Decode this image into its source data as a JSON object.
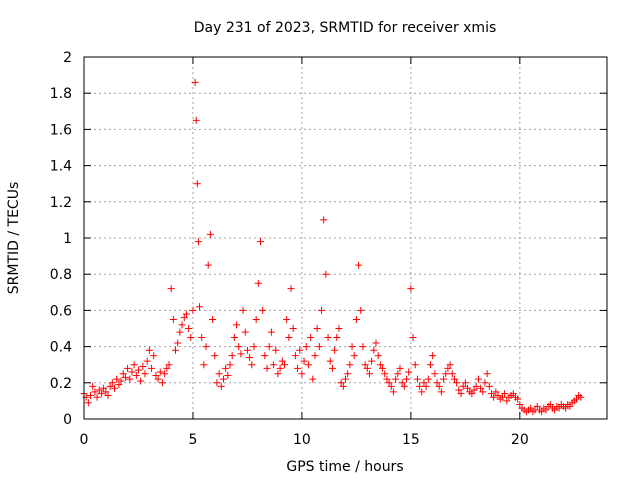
{
  "chart_data": {
    "type": "scatter",
    "title": "Day 231 of 2023, SRMTID for receiver xmis",
    "xlabel": "GPS time / hours",
    "ylabel": "SRMTID / TECUs",
    "xlim": [
      0,
      24
    ],
    "ylim": [
      0,
      2
    ],
    "xticks": [
      0,
      5,
      10,
      15,
      20
    ],
    "yticks": [
      0,
      0.2,
      0.4,
      0.6,
      0.8,
      1,
      1.2,
      1.4,
      1.6,
      1.8,
      2
    ],
    "grid": true,
    "marker": "+",
    "marker_color": "#ff0000",
    "series": [
      {
        "name": "SRMTID",
        "color": "#ff0000",
        "x": [
          0.0,
          0.1,
          0.2,
          0.3,
          0.4,
          0.5,
          0.6,
          0.7,
          0.8,
          0.9,
          1.0,
          1.1,
          1.2,
          1.3,
          1.4,
          1.5,
          1.6,
          1.7,
          1.8,
          1.9,
          2.0,
          2.1,
          2.2,
          2.3,
          2.4,
          2.5,
          2.6,
          2.7,
          2.8,
          2.9,
          3.0,
          3.1,
          3.2,
          3.3,
          3.4,
          3.5,
          3.6,
          3.7,
          3.8,
          3.9,
          4.0,
          4.1,
          4.2,
          4.3,
          4.4,
          4.5,
          4.6,
          4.7,
          4.8,
          4.9,
          5.0,
          5.1,
          5.15,
          5.2,
          5.25,
          5.3,
          5.4,
          5.5,
          5.6,
          5.7,
          5.8,
          5.9,
          6.0,
          6.1,
          6.2,
          6.3,
          6.4,
          6.5,
          6.6,
          6.7,
          6.8,
          6.9,
          7.0,
          7.1,
          7.2,
          7.3,
          7.4,
          7.5,
          7.6,
          7.7,
          7.8,
          7.9,
          8.0,
          8.1,
          8.2,
          8.3,
          8.4,
          8.5,
          8.6,
          8.7,
          8.8,
          8.9,
          9.0,
          9.1,
          9.2,
          9.3,
          9.4,
          9.5,
          9.6,
          9.7,
          9.8,
          9.9,
          10.0,
          10.1,
          10.2,
          10.3,
          10.4,
          10.5,
          10.6,
          10.7,
          10.8,
          10.9,
          11.0,
          11.1,
          11.2,
          11.3,
          11.4,
          11.5,
          11.6,
          11.7,
          11.8,
          11.9,
          12.0,
          12.1,
          12.2,
          12.3,
          12.4,
          12.5,
          12.6,
          12.7,
          12.8,
          12.9,
          13.0,
          13.1,
          13.2,
          13.3,
          13.4,
          13.5,
          13.6,
          13.7,
          13.8,
          13.9,
          14.0,
          14.1,
          14.2,
          14.3,
          14.4,
          14.5,
          14.6,
          14.7,
          14.8,
          14.9,
          15.0,
          15.1,
          15.2,
          15.3,
          15.4,
          15.5,
          15.6,
          15.7,
          15.8,
          15.9,
          16.0,
          16.1,
          16.2,
          16.3,
          16.4,
          16.5,
          16.6,
          16.7,
          16.8,
          16.9,
          17.0,
          17.1,
          17.2,
          17.3,
          17.4,
          17.5,
          17.6,
          17.7,
          17.8,
          17.9,
          18.0,
          18.1,
          18.2,
          18.3,
          18.4,
          18.5,
          18.6,
          18.7,
          18.8,
          18.9,
          19.0,
          19.1,
          19.2,
          19.3,
          19.4,
          19.5,
          19.6,
          19.7,
          19.8,
          19.9,
          20.0,
          20.1,
          20.2,
          20.3,
          20.4,
          20.5,
          20.6,
          20.7,
          20.8,
          20.9,
          21.0,
          21.1,
          21.2,
          21.3,
          21.4,
          21.5,
          21.6,
          21.7,
          21.8,
          21.9,
          22.0,
          22.1,
          22.2,
          22.3,
          22.4,
          22.5,
          22.6,
          22.7,
          22.8
        ],
        "y": [
          0.14,
          0.12,
          0.09,
          0.13,
          0.18,
          0.15,
          0.12,
          0.16,
          0.14,
          0.17,
          0.15,
          0.13,
          0.18,
          0.2,
          0.17,
          0.22,
          0.19,
          0.21,
          0.25,
          0.23,
          0.28,
          0.22,
          0.26,
          0.3,
          0.24,
          0.27,
          0.21,
          0.29,
          0.25,
          0.32,
          0.38,
          0.28,
          0.35,
          0.24,
          0.22,
          0.26,
          0.2,
          0.25,
          0.28,
          0.3,
          0.72,
          0.55,
          0.38,
          0.42,
          0.48,
          0.52,
          0.56,
          0.58,
          0.5,
          0.45,
          0.6,
          1.86,
          1.65,
          1.3,
          0.98,
          0.62,
          0.45,
          0.3,
          0.4,
          0.85,
          1.02,
          0.55,
          0.35,
          0.2,
          0.25,
          0.18,
          0.22,
          0.28,
          0.24,
          0.3,
          0.35,
          0.45,
          0.52,
          0.4,
          0.36,
          0.6,
          0.48,
          0.38,
          0.34,
          0.3,
          0.4,
          0.55,
          0.75,
          0.98,
          0.6,
          0.35,
          0.28,
          0.4,
          0.48,
          0.3,
          0.38,
          0.25,
          0.28,
          0.32,
          0.3,
          0.55,
          0.45,
          0.72,
          0.5,
          0.35,
          0.28,
          0.38,
          0.25,
          0.32,
          0.4,
          0.3,
          0.45,
          0.22,
          0.35,
          0.5,
          0.4,
          0.6,
          1.1,
          0.8,
          0.45,
          0.32,
          0.28,
          0.38,
          0.45,
          0.5,
          0.2,
          0.18,
          0.22,
          0.25,
          0.3,
          0.4,
          0.35,
          0.55,
          0.85,
          0.6,
          0.4,
          0.3,
          0.28,
          0.25,
          0.32,
          0.38,
          0.42,
          0.35,
          0.3,
          0.28,
          0.25,
          0.22,
          0.2,
          0.18,
          0.15,
          0.22,
          0.25,
          0.28,
          0.2,
          0.18,
          0.22,
          0.26,
          0.72,
          0.45,
          0.3,
          0.22,
          0.18,
          0.15,
          0.2,
          0.18,
          0.22,
          0.3,
          0.35,
          0.25,
          0.2,
          0.18,
          0.15,
          0.22,
          0.25,
          0.28,
          0.3,
          0.25,
          0.22,
          0.2,
          0.16,
          0.14,
          0.18,
          0.2,
          0.17,
          0.15,
          0.14,
          0.16,
          0.18,
          0.22,
          0.17,
          0.15,
          0.2,
          0.25,
          0.18,
          0.14,
          0.12,
          0.15,
          0.13,
          0.11,
          0.12,
          0.14,
          0.1,
          0.12,
          0.13,
          0.14,
          0.12,
          0.11,
          0.08,
          0.06,
          0.05,
          0.04,
          0.05,
          0.06,
          0.04,
          0.05,
          0.07,
          0.05,
          0.04,
          0.06,
          0.05,
          0.07,
          0.08,
          0.06,
          0.05,
          0.07,
          0.06,
          0.08,
          0.07,
          0.06,
          0.08,
          0.07,
          0.09,
          0.1,
          0.11,
          0.13,
          0.12
        ]
      }
    ]
  }
}
